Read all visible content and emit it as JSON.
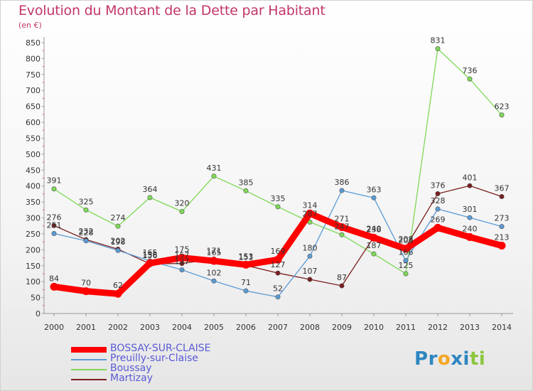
{
  "title": "Evolution du Montant de la Dette par Habitant",
  "unit": "(en €)",
  "logo": {
    "letters": [
      "P",
      "r",
      "o",
      "x",
      "i",
      "t",
      "i"
    ],
    "colors": [
      "#2e86c1",
      "#2e86c1",
      "#f5a623",
      "#2e86c1",
      "#2e86c1",
      "#8cc63f",
      "#8cc63f"
    ]
  },
  "chart_data": {
    "type": "line",
    "title": "Evolution du Montant de la Dette par Habitant",
    "ylabel": "(en €)",
    "xlabel": "",
    "ylim": [
      0,
      850
    ],
    "yticks": [
      0,
      50,
      100,
      150,
      200,
      250,
      300,
      350,
      400,
      450,
      500,
      550,
      600,
      650,
      700,
      750,
      800,
      850
    ],
    "grid": false,
    "legend_position": "bottom-left",
    "x": [
      "2000",
      "2001",
      "2002",
      "2003",
      "2004",
      "2005",
      "2006",
      "2007",
      "2008",
      "2009",
      "2010",
      "2011",
      "2012",
      "2013",
      "2014"
    ],
    "series": [
      {
        "name": "BOSSAY-SUR-CLAISE",
        "color": "#ff0000",
        "values": [
          84,
          70,
          62,
          158,
          175,
          165,
          153,
          169,
          314,
          271,
          238,
          203,
          269,
          240,
          213
        ]
      },
      {
        "name": "Preuilly-sur-Claise",
        "color": "#5b9bd5",
        "values": [
          251,
          228,
          198,
          165,
          137,
          102,
          71,
          52,
          180,
          386,
          363,
          166,
          328,
          301,
          273
        ]
      },
      {
        "name": "Boussay",
        "color": "#7ed957",
        "values": [
          391,
          325,
          274,
          364,
          320,
          431,
          385,
          335,
          287,
          247,
          187,
          125,
          831,
          736,
          623
        ]
      },
      {
        "name": "Martizay",
        "color": "#7b1e1e",
        "values": [
          276,
          232,
          202,
          156,
          157,
          171,
          151,
          127,
          107,
          87,
          240,
          208,
          376,
          401,
          367
        ]
      }
    ]
  }
}
